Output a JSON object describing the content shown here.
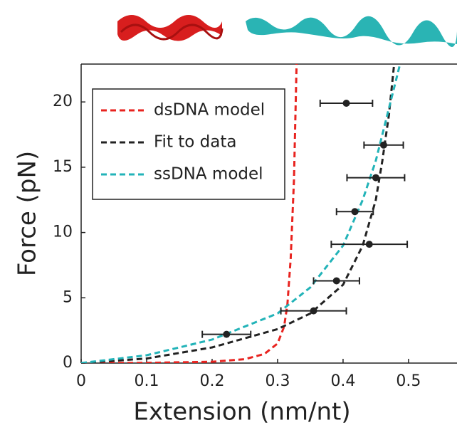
{
  "chart_data": {
    "type": "line",
    "xlabel": "Extension (nm/nt)",
    "ylabel": "Force (pN)",
    "xlim": [
      0,
      0.574
    ],
    "ylim": [
      0,
      22.9
    ],
    "xticks": [
      0,
      0.1,
      0.2,
      0.3,
      0.4,
      0.5
    ],
    "yticks": [
      0,
      5,
      10,
      15,
      20
    ],
    "legend": "upper left",
    "series": [
      {
        "name": "dsDNA model",
        "color": "#e8231f",
        "x": [
          0,
          0.1,
          0.2,
          0.25,
          0.28,
          0.3,
          0.31,
          0.315,
          0.32,
          0.325,
          0.329
        ],
        "values": [
          0,
          0.02,
          0.1,
          0.3,
          0.7,
          1.5,
          2.8,
          4.5,
          8,
          14,
          22.9
        ]
      },
      {
        "name": "Fit to data",
        "color": "#222222",
        "x": [
          0,
          0.1,
          0.2,
          0.3,
          0.35,
          0.4,
          0.43,
          0.45,
          0.46,
          0.47,
          0.478
        ],
        "values": [
          0,
          0.35,
          1.2,
          2.6,
          3.8,
          6,
          9,
          12.5,
          15.5,
          19,
          22.9
        ]
      },
      {
        "name": "ssDNA model",
        "color": "#22b3b8",
        "x": [
          0,
          0.1,
          0.2,
          0.3,
          0.35,
          0.4,
          0.43,
          0.45,
          0.47,
          0.487
        ],
        "values": [
          0,
          0.6,
          1.8,
          3.8,
          5.8,
          9,
          12.5,
          15.5,
          19.5,
          22.9
        ]
      }
    ],
    "points": {
      "color": "#222222",
      "x": [
        0.222,
        0.355,
        0.39,
        0.44,
        0.418,
        0.45,
        0.462,
        0.405
      ],
      "values": [
        2.2,
        4.0,
        6.3,
        9.1,
        11.6,
        14.2,
        16.7,
        19.9
      ],
      "xerr": [
        0.037,
        0.05,
        0.035,
        0.058,
        0.028,
        0.044,
        0.03,
        0.04
      ]
    }
  }
}
